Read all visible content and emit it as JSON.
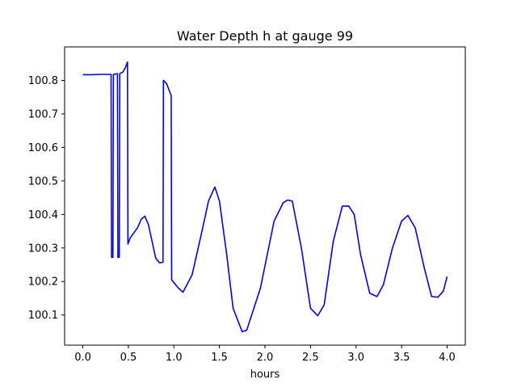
{
  "chart_data": {
    "type": "line",
    "title": "Water Depth h at gauge 99",
    "xlabel": "hours",
    "ylabel": "",
    "xlim": [
      -0.2,
      4.2
    ],
    "ylim": [
      100.01,
      100.9
    ],
    "grid": false,
    "x_ticks": [
      0.0,
      0.5,
      1.0,
      1.5,
      2.0,
      2.5,
      3.0,
      3.5,
      4.0
    ],
    "x_tick_labels": [
      "0.0",
      "0.5",
      "1.0",
      "1.5",
      "2.0",
      "2.5",
      "3.0",
      "3.5",
      "4.0"
    ],
    "y_ticks": [
      100.1,
      100.2,
      100.3,
      100.4,
      100.5,
      100.6,
      100.7,
      100.8
    ],
    "y_tick_labels": [
      "100.1",
      "100.2",
      "100.3",
      "100.4",
      "100.5",
      "100.6",
      "100.7",
      "100.8"
    ],
    "series": [
      {
        "color": "#0000ff",
        "x": [
          0.0,
          0.1,
          0.2,
          0.31,
          0.315,
          0.33,
          0.335,
          0.38,
          0.385,
          0.4,
          0.405,
          0.44,
          0.47,
          0.49,
          0.495,
          0.52,
          0.6,
          0.64,
          0.68,
          0.72,
          0.8,
          0.84,
          0.88,
          0.885,
          0.92,
          0.97,
          0.975,
          1.05,
          1.1,
          1.2,
          1.3,
          1.38,
          1.45,
          1.5,
          1.58,
          1.65,
          1.75,
          1.8,
          1.95,
          2.1,
          2.2,
          2.25,
          2.3,
          2.4,
          2.5,
          2.58,
          2.65,
          2.75,
          2.85,
          2.92,
          2.98,
          3.05,
          3.15,
          3.23,
          3.3,
          3.4,
          3.5,
          3.57,
          3.65,
          3.75,
          3.83,
          3.9,
          3.96,
          4.0
        ],
        "y": [
          100.817,
          100.817,
          100.818,
          100.818,
          100.272,
          100.272,
          100.818,
          100.82,
          100.272,
          100.272,
          100.82,
          100.825,
          100.84,
          100.855,
          100.312,
          100.33,
          100.36,
          100.385,
          100.395,
          100.37,
          100.27,
          100.256,
          100.257,
          100.8,
          100.79,
          100.755,
          100.205,
          100.18,
          100.168,
          100.22,
          100.34,
          100.44,
          100.482,
          100.44,
          100.28,
          100.12,
          100.05,
          100.055,
          100.18,
          100.38,
          100.435,
          100.443,
          100.44,
          100.3,
          100.12,
          100.098,
          100.13,
          100.32,
          100.425,
          100.425,
          100.4,
          100.28,
          100.165,
          100.155,
          100.19,
          100.3,
          100.38,
          100.397,
          100.36,
          100.24,
          100.155,
          100.153,
          100.172,
          100.215
        ]
      }
    ]
  }
}
